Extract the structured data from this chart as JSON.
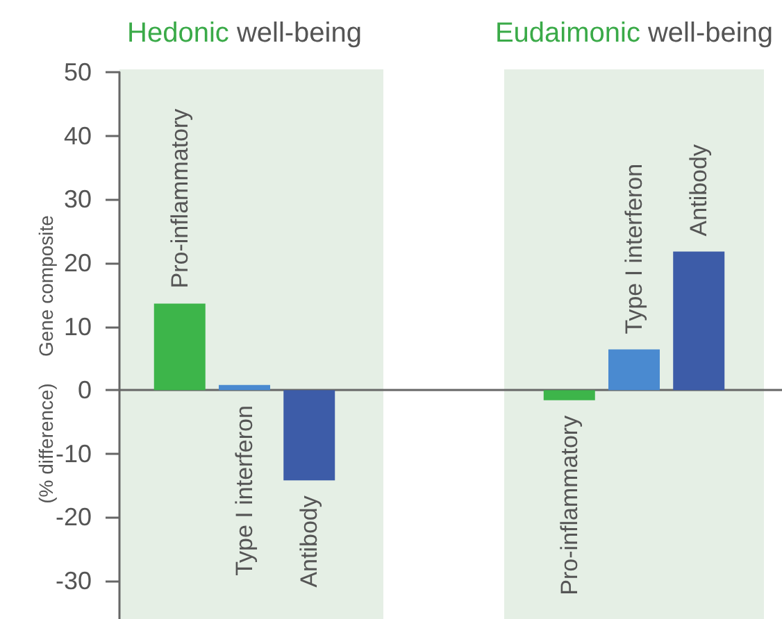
{
  "chart_data": {
    "type": "bar",
    "ylabel": "Gene composite\n(% difference)",
    "categories": [
      "Hedonic well-being",
      "Eudaimonic well-being"
    ],
    "series": [
      {
        "name": "Pro-inflammatory",
        "color": "#3db54a",
        "values": [
          13.6,
          -1.6
        ]
      },
      {
        "name": "Type I interferon",
        "color": "#4a8ad0",
        "values": [
          0.8,
          6.4
        ]
      },
      {
        "name": "Antibody",
        "color": "#3d5ca8",
        "values": [
          -14.2,
          21.8
        ]
      }
    ],
    "ylim": [
      -36,
      50
    ],
    "yticks": [
      -30,
      -20,
      -10,
      0,
      10,
      20,
      30,
      40,
      50
    ]
  }
}
